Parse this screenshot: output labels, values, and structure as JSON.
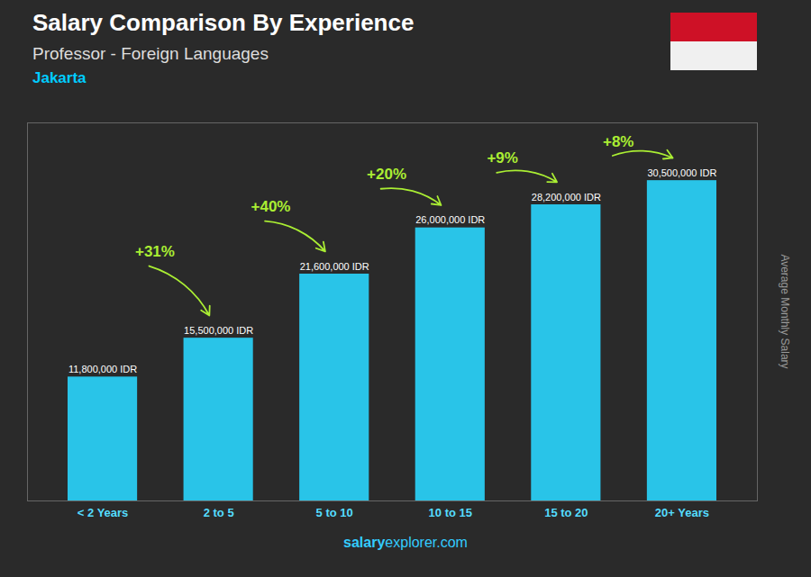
{
  "chart_data": {
    "type": "bar",
    "title": "Salary Comparison By Experience",
    "subtitle": [
      "Professor - Foreign Languages",
      "Jakarta"
    ],
    "caption": [
      "salary",
      "explorer.com"
    ],
    "ylabel": "Average Monthly Salary",
    "categories": [
      "< 2 Years",
      "2 to 5",
      "5 to 10",
      "10 to 15",
      "15 to 20",
      "20+ Years"
    ],
    "values": [
      11800000,
      15500000,
      21600000,
      26000000,
      28200000,
      30500000
    ],
    "value_labels": [
      "11,800,000 IDR",
      "15,500,000 IDR",
      "21,600,000 IDR",
      "26,000,000 IDR",
      "28,200,000 IDR",
      "30,500,000 IDR"
    ],
    "data_labels": true,
    "annotations": [
      "+31%",
      "+40%",
      "+20%",
      "+9%",
      "+8%"
    ],
    "color": "#29c4e8",
    "ylim": [
      0,
      36000000
    ],
    "yticks": [],
    "tick_labels": "x"
  }
}
